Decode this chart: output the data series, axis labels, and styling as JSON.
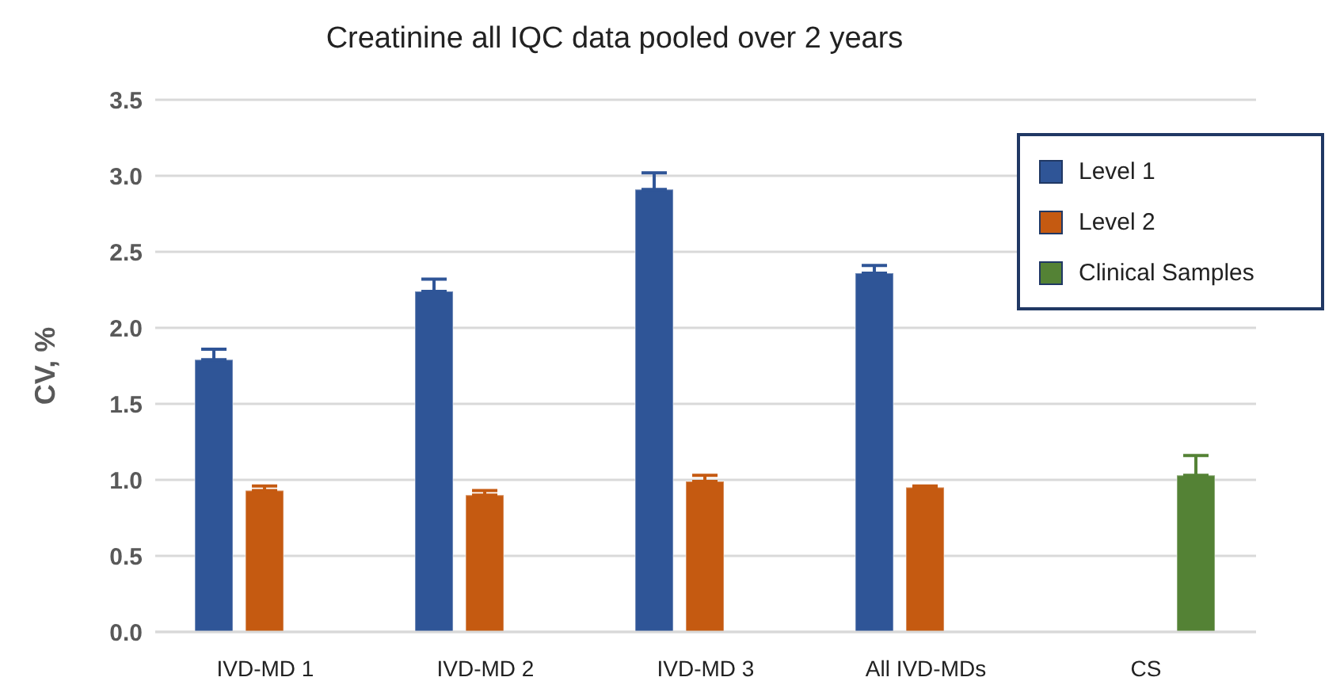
{
  "chart_data": {
    "type": "bar",
    "title": "Creatinine all IQC data pooled over 2 years",
    "ylabel": "CV, %",
    "categories": [
      "IVD-MD 1",
      "IVD-MD 2",
      "IVD-MD 3",
      "All IVD-MDs",
      "CS"
    ],
    "series": [
      {
        "name": "Level 1",
        "color": "#2f5597",
        "values": [
          1.79,
          2.24,
          2.91,
          2.36,
          null
        ],
        "errors": [
          [
            1.79,
            1.86
          ],
          [
            2.24,
            2.32
          ],
          [
            2.91,
            3.02
          ],
          [
            2.36,
            2.41
          ],
          null
        ]
      },
      {
        "name": "Level 2",
        "color": "#c55a11",
        "values": [
          0.93,
          0.9,
          0.99,
          0.95,
          null
        ],
        "errors": [
          [
            0.93,
            0.96
          ],
          [
            0.9,
            0.93
          ],
          [
            0.99,
            1.03
          ],
          [
            0.95,
            0.96
          ],
          null
        ]
      },
      {
        "name": "Clinical Samples",
        "color": "#548235",
        "values": [
          null,
          null,
          null,
          null,
          1.03
        ],
        "errors": [
          null,
          null,
          null,
          null,
          [
            1.03,
            1.16
          ]
        ]
      }
    ],
    "ylim": [
      0,
      3.5
    ],
    "yticks": [
      {
        "value": 0,
        "label": "0.0"
      },
      0.5,
      {
        "value": 1,
        "label": "1.0"
      },
      1.5,
      {
        "value": 2,
        "label": "2.0"
      },
      2.5,
      {
        "value": 3,
        "label": "3.0"
      },
      3.5
    ],
    "grid": "y",
    "legend": "top right"
  }
}
